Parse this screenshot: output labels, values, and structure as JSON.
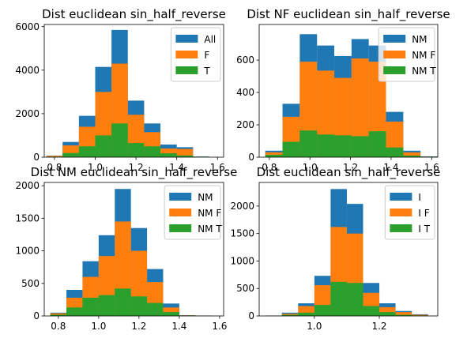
{
  "chart_data": [
    {
      "type": "bar",
      "title": "Dist euclidean sin_half_reverse",
      "xlim": [
        0.75,
        1.63
      ],
      "ylim": [
        0,
        6100
      ],
      "xticks": [
        0.8,
        1.0,
        1.2,
        1.4,
        1.6
      ],
      "xticklabels": [
        "0.8",
        "1.0",
        "1.2",
        "1.4",
        "1.6"
      ],
      "yticks": [
        0,
        2000,
        4000,
        6000
      ],
      "yticklabels": [
        "0",
        "2000",
        "4000",
        "6000"
      ],
      "bin_edges": [
        0.76,
        0.84,
        0.92,
        1.0,
        1.08,
        1.16,
        1.24,
        1.32,
        1.4,
        1.48,
        1.56
      ],
      "legend_position": "upper right",
      "series": [
        {
          "name": "All",
          "color": "#1f77b4",
          "values": [
            70,
            700,
            1900,
            4150,
            5850,
            2600,
            1550,
            580,
            460,
            30
          ]
        },
        {
          "name": "F",
          "color": "#ff7f0e",
          "values": [
            60,
            540,
            1400,
            3000,
            4300,
            1950,
            1150,
            400,
            380,
            20
          ]
        },
        {
          "name": "T",
          "color": "#2ca02c",
          "values": [
            20,
            190,
            500,
            1000,
            1550,
            650,
            500,
            180,
            80,
            10
          ]
        }
      ]
    },
    {
      "type": "bar",
      "title": "Dist NF euclidean sin_half_reverse",
      "xlim": [
        0.75,
        1.63
      ],
      "ylim": [
        0,
        820
      ],
      "xticks": [
        0.8,
        1.0,
        1.2,
        1.4,
        1.6
      ],
      "xticklabels": [
        "0.8",
        "1.0",
        "1.2",
        "1.4",
        "1.6"
      ],
      "yticks": [
        0,
        200,
        400,
        600
      ],
      "yticklabels": [
        "0",
        "200",
        "400",
        "600"
      ],
      "bin_edges": [
        0.78,
        0.865,
        0.95,
        1.035,
        1.12,
        1.205,
        1.29,
        1.375,
        1.46,
        1.545,
        1.63
      ],
      "legend_position": "upper right",
      "series": [
        {
          "name": "NM",
          "color": "#1f77b4",
          "values": [
            40,
            330,
            760,
            690,
            625,
            730,
            690,
            280,
            40,
            5
          ]
        },
        {
          "name": "NM F",
          "color": "#ff7f0e",
          "values": [
            30,
            250,
            590,
            535,
            490,
            610,
            590,
            220,
            30,
            3
          ]
        },
        {
          "name": "NM T",
          "color": "#2ca02c",
          "values": [
            15,
            95,
            165,
            140,
            135,
            130,
            160,
            60,
            10,
            2
          ]
        }
      ]
    },
    {
      "type": "bar",
      "title": "Dist NM euclidean sin_half_reverse",
      "xlim": [
        0.73,
        1.62
      ],
      "ylim": [
        0,
        2050
      ],
      "xticks": [
        0.8,
        1.0,
        1.2,
        1.4,
        1.6
      ],
      "xticklabels": [
        "0.8",
        "1.0",
        "1.2",
        "1.4",
        "1.6"
      ],
      "yticks": [
        0,
        500,
        1000,
        1500,
        2000
      ],
      "yticklabels": [
        "0",
        "500",
        "1000",
        "1500",
        "2000"
      ],
      "bin_edges": [
        0.76,
        0.84,
        0.92,
        1.0,
        1.08,
        1.16,
        1.24,
        1.32,
        1.4,
        1.48,
        1.56
      ],
      "legend_position": "upper right",
      "series": [
        {
          "name": "NM",
          "color": "#1f77b4",
          "values": [
            50,
            400,
            840,
            1240,
            1950,
            1350,
            720,
            190,
            10,
            5
          ]
        },
        {
          "name": "NM F",
          "color": "#ff7f0e",
          "values": [
            40,
            280,
            600,
            920,
            1450,
            1000,
            520,
            130,
            8,
            3
          ]
        },
        {
          "name": "NM T",
          "color": "#2ca02c",
          "values": [
            20,
            130,
            280,
            320,
            420,
            300,
            200,
            60,
            5,
            2
          ]
        }
      ]
    },
    {
      "type": "bar",
      "title": "Dist euclidean sin_half_reverse",
      "xlim": [
        0.83,
        1.38
      ],
      "ylim": [
        0,
        2430
      ],
      "xticks": [
        1.0,
        1.2
      ],
      "xticklabels": [
        "1.0",
        "1.2"
      ],
      "yticks": [
        0,
        500,
        1000,
        1500,
        2000
      ],
      "yticklabels": [
        "0",
        "500",
        "1000",
        "1500",
        "2000"
      ],
      "bin_edges": [
        0.85,
        0.9,
        0.95,
        1.0,
        1.05,
        1.1,
        1.15,
        1.2,
        1.25,
        1.3,
        1.35
      ],
      "legend_position": "upper right",
      "series": [
        {
          "name": "I",
          "color": "#1f77b4",
          "values": [
            5,
            60,
            230,
            730,
            2310,
            2040,
            600,
            230,
            90,
            30
          ]
        },
        {
          "name": "I F",
          "color": "#ff7f0e",
          "values": [
            4,
            40,
            180,
            560,
            1620,
            1500,
            420,
            160,
            70,
            20
          ]
        },
        {
          "name": "I T",
          "color": "#2ca02c",
          "values": [
            2,
            20,
            60,
            200,
            620,
            600,
            180,
            70,
            20,
            8
          ]
        }
      ]
    }
  ]
}
